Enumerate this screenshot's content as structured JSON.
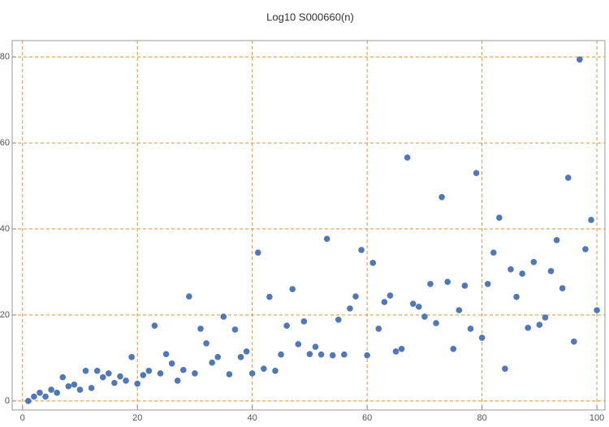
{
  "chart_data": {
    "type": "scatter",
    "title": "Log10 S000660(n)",
    "x": [
      1,
      2,
      3,
      4,
      5,
      6,
      7,
      8,
      9,
      10,
      11,
      12,
      13,
      14,
      15,
      16,
      17,
      18,
      19,
      20,
      21,
      22,
      23,
      24,
      25,
      26,
      27,
      28,
      29,
      30,
      31,
      32,
      33,
      34,
      35,
      36,
      37,
      38,
      39,
      40,
      41,
      42,
      43,
      44,
      45,
      46,
      47,
      48,
      49,
      50,
      51,
      52,
      53,
      54,
      55,
      56,
      57,
      58,
      59,
      60,
      61,
      62,
      63,
      64,
      65,
      66,
      67,
      68,
      69,
      70,
      71,
      72,
      73,
      74,
      75,
      76,
      77,
      78,
      79,
      80,
      81,
      82,
      83,
      84,
      85,
      86,
      87,
      88,
      89,
      90,
      91,
      92,
      93,
      94,
      95,
      96,
      97,
      98,
      99,
      100
    ],
    "values": [
      0,
      1,
      1.9,
      1,
      2.6,
      1.9,
      5.5,
      3.4,
      3.8,
      2.6,
      7,
      3,
      7,
      5.5,
      6.4,
      4.2,
      5.7,
      4.7,
      10.2,
      4,
      6,
      7,
      17.5,
      6.4,
      10.9,
      8.7,
      4.7,
      7.2,
      24.3,
      6.4,
      16.8,
      13.4,
      8.9,
      10.2,
      19.6,
      6.2,
      16.6,
      10.2,
      11.5,
      6.4,
      34.5,
      7.5,
      24.2,
      7,
      10.8,
      17.5,
      26,
      13.2,
      18.5,
      10.9,
      12.6,
      10.8,
      37.7,
      10.6,
      18.9,
      10.8,
      21.5,
      24.3,
      35.1,
      10.6,
      32.1,
      16.8,
      23,
      24.5,
      11.5,
      12.1,
      56.6,
      22.6,
      21.9,
      19.6,
      27.2,
      18.1,
      47.4,
      27.7,
      12.1,
      21.1,
      26.8,
      16.8,
      53,
      14.7,
      27.2,
      34.5,
      42.6,
      7.5,
      30.6,
      24.2,
      29.6,
      17,
      32.3,
      17.7,
      19.4,
      30.2,
      37.4,
      26.2,
      51.9,
      13.8,
      79.4,
      35.3,
      42.1,
      21.1
    ],
    "color": "#5077b8",
    "xlim": [
      -1.8,
      101.4
    ],
    "ylim": [
      -2.1,
      83.8
    ],
    "xticks": [
      0,
      20,
      40,
      60,
      80,
      100
    ],
    "yticks": [
      0,
      20,
      40,
      60,
      80
    ],
    "grid": true,
    "grid_color": "#e8912e"
  }
}
